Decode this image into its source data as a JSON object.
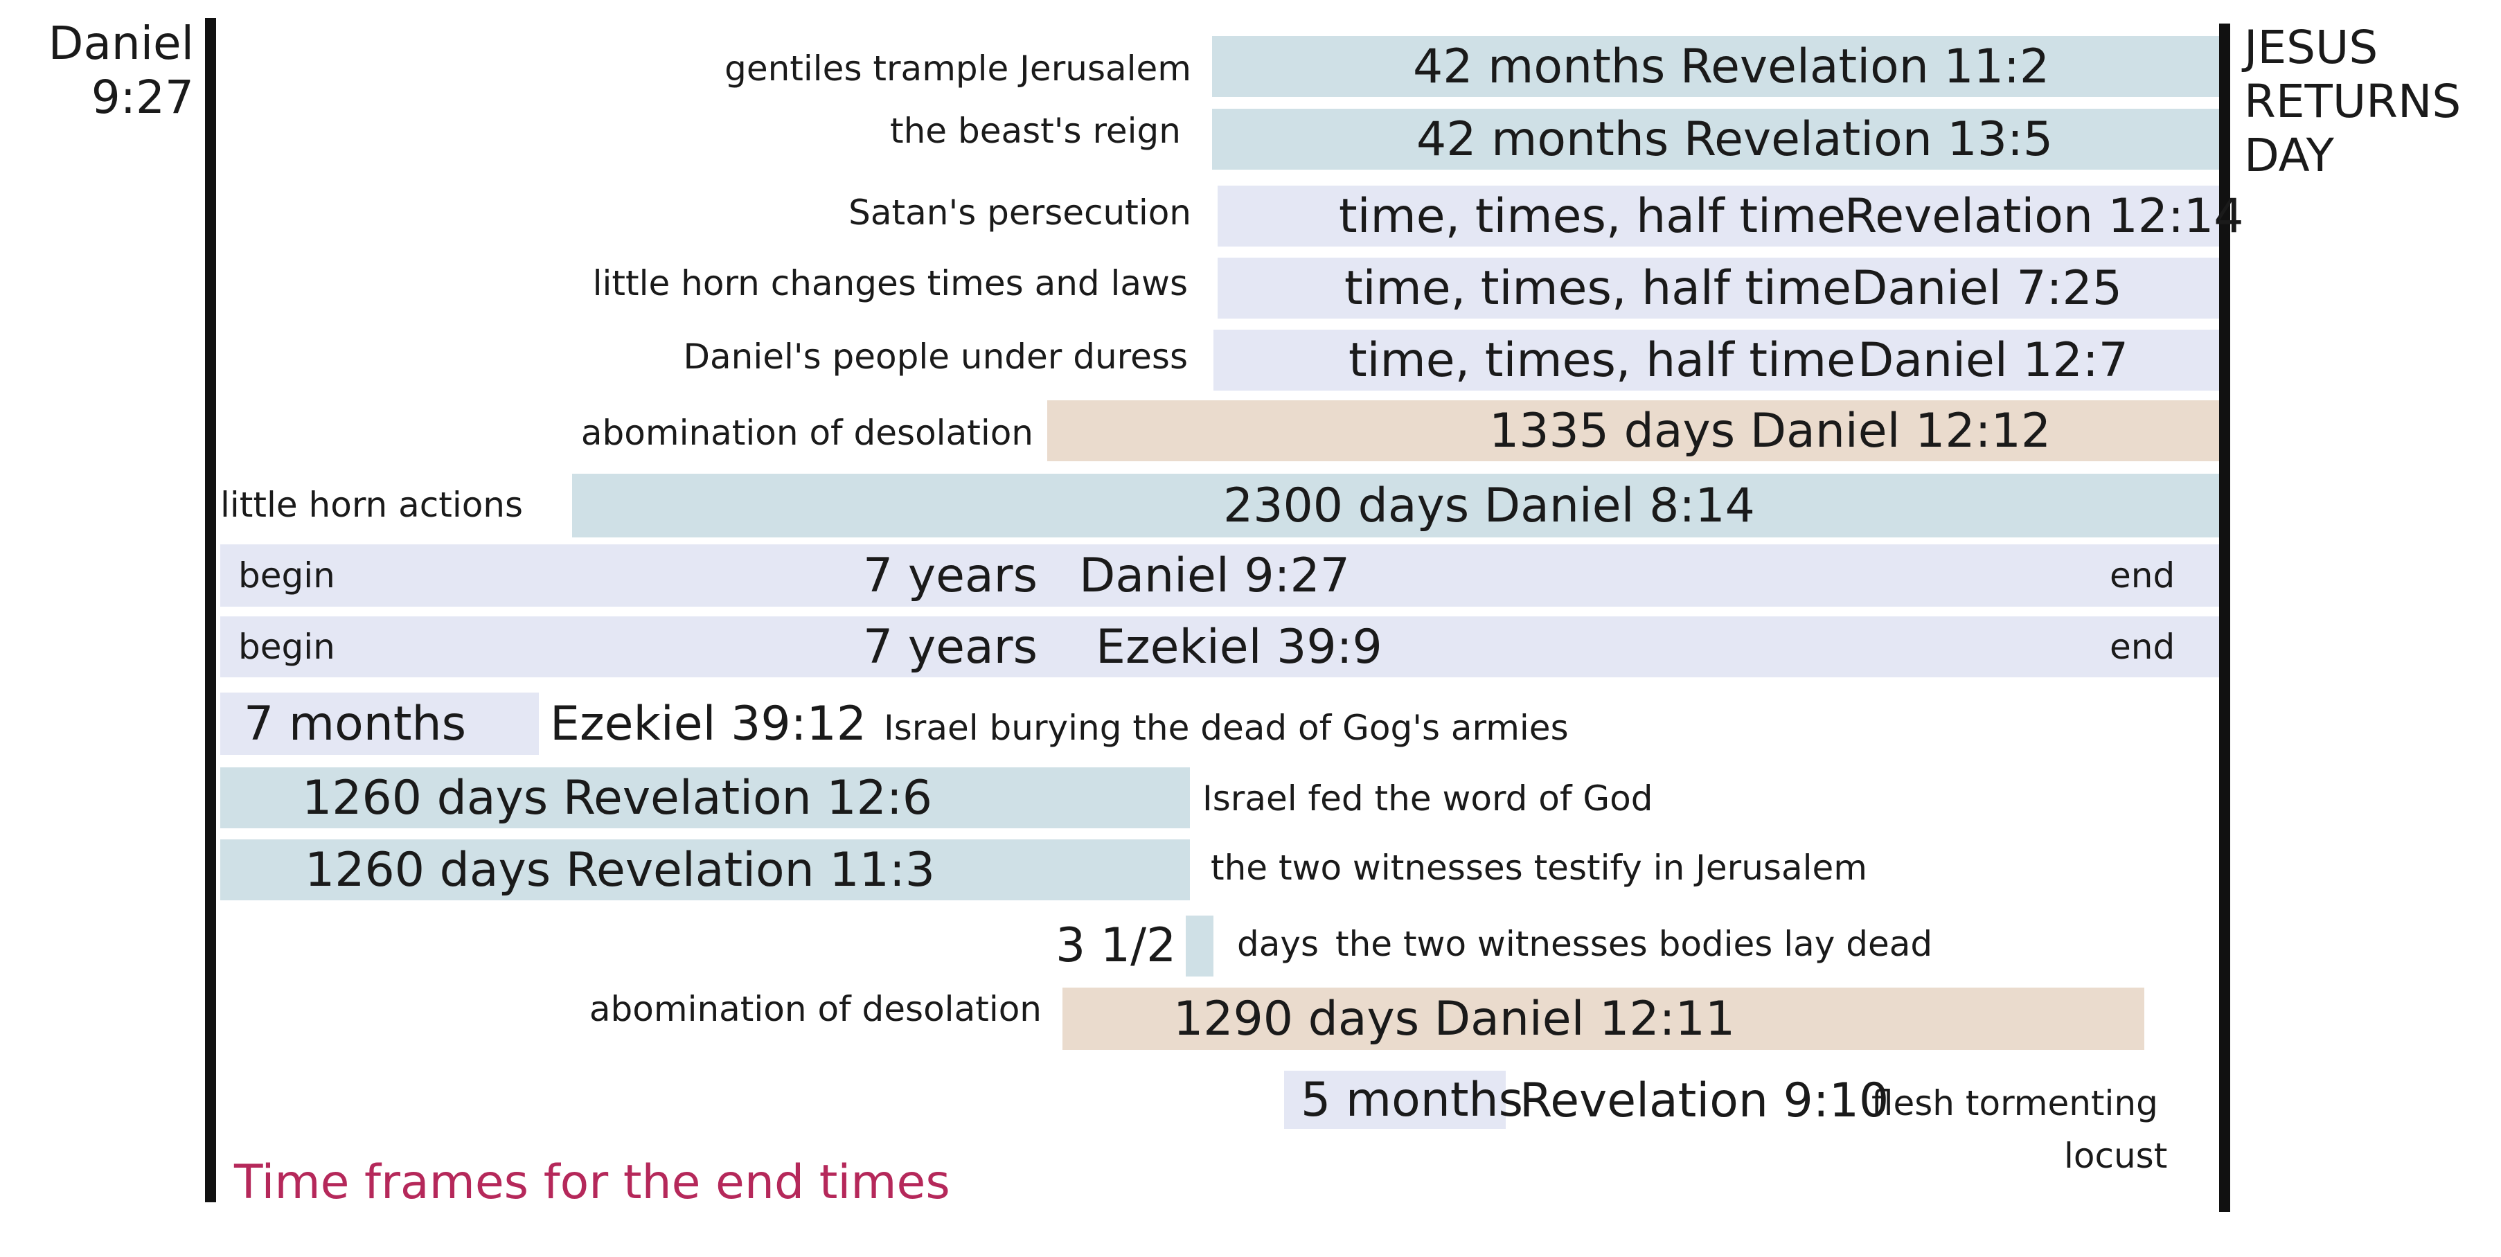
{
  "left_heading": [
    "Daniel",
    "9:27"
  ],
  "right_heading": [
    "JESUS",
    "RETURNS",
    "DAY"
  ],
  "caption": "Time frames for the end times",
  "colors": {
    "blue": "#cfe0e6",
    "lavender": "#e4e7f4",
    "tan": "#eadbcd",
    "caption": "#b5285a"
  },
  "rows": [
    {
      "label": "gentiles trample Jerusalem",
      "text": "42 months  Revelation 11:2"
    },
    {
      "label": "the beast's reign",
      "text": "42 months  Revelation 13:5"
    },
    {
      "label": "Satan's persecution",
      "text_a": "time, times, half time",
      "text_b": "Revelation 12:14"
    },
    {
      "label": "little horn changes times and laws",
      "text_a": "time, times, half time",
      "text_b": "Daniel  7:25"
    },
    {
      "label": "Daniel's people under duress",
      "text_a": "time, times, half time",
      "text_b": "Daniel 12:7"
    },
    {
      "label": "abomination of desolation",
      "text": "1335 days  Daniel 12:12"
    },
    {
      "label": "little horn actions",
      "text": "2300 days  Daniel 8:14"
    },
    {
      "begin": "begin",
      "span": "7 years",
      "ref": "Daniel 9:27",
      "end": "end"
    },
    {
      "begin": "begin",
      "span": "7 years",
      "ref": "Ezekiel 39:9",
      "end": "end"
    },
    {
      "span": "7 months",
      "ref": "Ezekiel 39:12",
      "note": "Israel burying the dead of Gog's armies"
    },
    {
      "text": "1260 days  Revelation 12:6",
      "note": "Israel fed the word of God"
    },
    {
      "text": "1260 days  Revelation 11:3",
      "note": "the two witnesses testify in Jerusalem"
    },
    {
      "span": "3 1/2",
      "note_a": "days",
      "note_b": "the two witnesses bodies lay dead"
    },
    {
      "label": "abomination of desolation",
      "text": "1290 days  Daniel 12:11"
    },
    {
      "span": "5 months",
      "ref": "Revelation 9:10",
      "note_a": "flesh tormenting",
      "note_b": "locust"
    }
  ]
}
